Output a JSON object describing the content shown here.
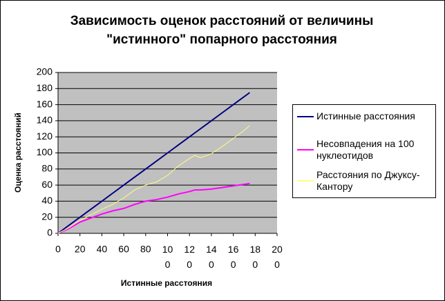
{
  "chart_data": {
    "type": "line",
    "title": "Зависимость оценок расстояний от величины \"истинного\" попарного расстояния",
    "x_label": "Истинные расстояния",
    "y_label": "Оценка расстояний",
    "x": [
      0,
      10,
      20,
      30,
      40,
      50,
      60,
      70,
      80,
      90,
      100,
      110,
      120,
      125,
      130,
      140,
      150,
      160,
      170,
      175
    ],
    "series": [
      {
        "name": "Истинные расстояния",
        "color": "#000080",
        "values": [
          0,
          10,
          20,
          30,
          40,
          50,
          60,
          70,
          80,
          90,
          100,
          110,
          120,
          125,
          130,
          140,
          150,
          160,
          170,
          175
        ]
      },
      {
        "name": "Несовпадения на 100 нуклеотидов",
        "color": "#ff00ff",
        "values": [
          0,
          6,
          14,
          19,
          24,
          28,
          31,
          36,
          40,
          42,
          45,
          49,
          52,
          54,
          54,
          55,
          57,
          59,
          61,
          62
        ]
      },
      {
        "name": "Расстояния по Джуксу-Кантору",
        "color": "#ffff80",
        "values": [
          0,
          7,
          16,
          23,
          30,
          36,
          44,
          54,
          60,
          64,
          72,
          84,
          93,
          97,
          94,
          99,
          108,
          118,
          128,
          134
        ]
      }
    ],
    "xlim": [
      0,
      200
    ],
    "xticks": [
      0,
      20,
      40,
      60,
      80,
      100,
      120,
      140,
      160,
      180,
      200
    ],
    "ylim": [
      0,
      200
    ],
    "yticks": [
      0,
      20,
      40,
      60,
      80,
      100,
      120,
      140,
      160,
      180,
      200
    ],
    "grid": true,
    "legend": "right",
    "plot_background": "#c0c0c0"
  }
}
